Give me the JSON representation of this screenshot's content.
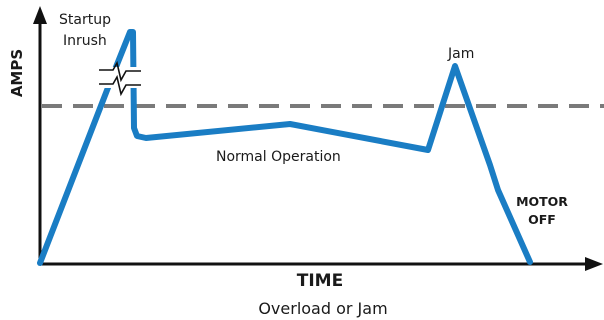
{
  "axes": {
    "y_label": "AMPS",
    "x_label": "TIME"
  },
  "annotations": {
    "startup_line1": "Startup",
    "startup_line2": "Inrush",
    "jam": "Jam",
    "normal_operation": "Normal Operation",
    "motor_off_line1": "MOTOR",
    "motor_off_line2": "OFF"
  },
  "caption": "Overload or Jam",
  "colors": {
    "curve": "#1a7dc4",
    "threshold": "#7a7a7a",
    "axis": "#111111",
    "text": "#1a1a1a"
  }
}
